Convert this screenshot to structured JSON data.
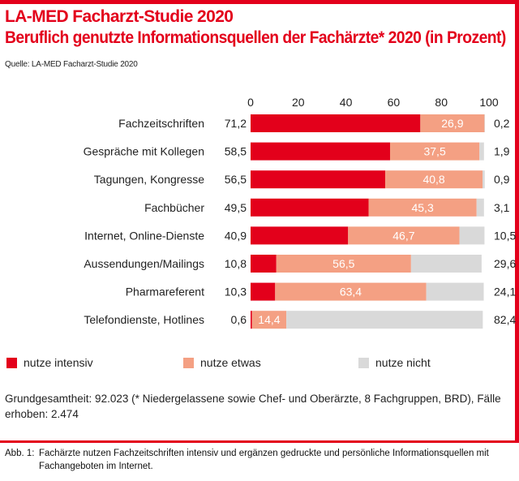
{
  "header": {
    "title": "LA-MED Facharzt-Studie 2020",
    "subtitle": "Beruflich genutzte Informationsquellen der Fachärzte* 2020 (in Prozent)",
    "source": "Quelle: LA-MED Facharzt-Studie 2020"
  },
  "colors": {
    "accent": "#e3001b",
    "intensiv": "#e3001b",
    "etwas": "#f4a083",
    "nicht": "#d9d9d9"
  },
  "chart_data": {
    "type": "bar",
    "orientation": "horizontal",
    "stacked": true,
    "xlim": [
      0,
      100
    ],
    "x_ticks": [
      "0",
      "20",
      "40",
      "60",
      "80",
      "100"
    ],
    "categories": [
      "Fachzeitschriften",
      "Gespräche mit Kollegen",
      "Tagungen, Kongresse",
      "Fachbücher",
      "Internet, Online-Dienste",
      "Aussendungen/Mailings",
      "Pharmareferent",
      "Telefondienste, Hotlines"
    ],
    "series": [
      {
        "name": "nutze intensiv",
        "values": [
          71.2,
          58.5,
          56.5,
          49.5,
          40.9,
          10.8,
          10.3,
          0.6
        ],
        "labels": [
          "71,2",
          "58,5",
          "56,5",
          "49,5",
          "40,9",
          "10,8",
          "10,3",
          "0,6"
        ]
      },
      {
        "name": "nutze etwas",
        "values": [
          26.9,
          37.5,
          40.8,
          45.3,
          46.7,
          56.5,
          63.4,
          14.4
        ],
        "labels": [
          "26,9",
          "37,5",
          "40,8",
          "45,3",
          "46,7",
          "56,5",
          "63,4",
          "14,4"
        ]
      },
      {
        "name": "nutze nicht",
        "values": [
          0.2,
          1.9,
          0.9,
          3.1,
          10.5,
          29.6,
          24.1,
          82.4
        ],
        "labels": [
          "0,2",
          "1,9",
          "0,9",
          "3,1",
          "10,5",
          "29,6",
          "24,1",
          "82,4"
        ]
      }
    ],
    "grid": false,
    "legend_position": "bottom"
  },
  "footer": {
    "note": "Grundgesamtheit: 92.023 (* Niedergelassene sowie Chef- und Oberärzte, 8 Fachgruppen, BRD), Fälle erhoben: 2.474"
  },
  "caption": {
    "label": "Abb. 1:",
    "text": "Fachärzte nutzen Fachzeitschriften intensiv und ergänzen gedruckte und persönliche Informationsquellen mit Fachangeboten im Internet."
  }
}
